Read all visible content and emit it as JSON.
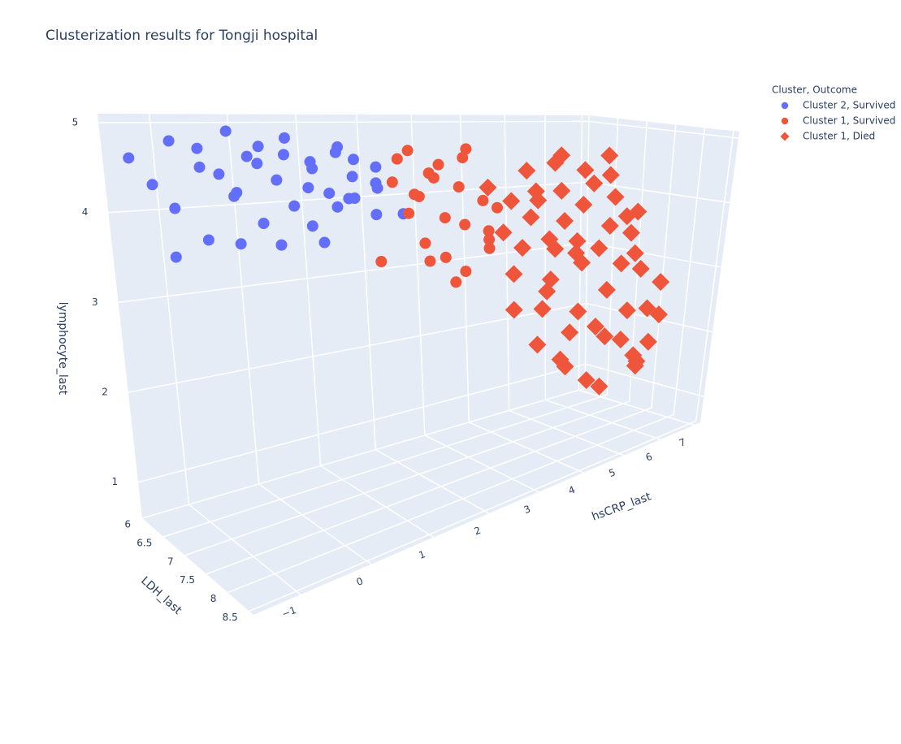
{
  "chart_data": {
    "type": "scatter3d",
    "title": "Clusterization results for Tongji hospital",
    "xaxis_title": "hsCRP_last",
    "yaxis_title": "LDH_last",
    "zaxis_title": "lymphocyte_last",
    "xlim": [
      -1.6,
      7.2
    ],
    "ylim": [
      6,
      8.6
    ],
    "zlim": [
      0.6,
      5.1
    ],
    "xticks": [
      {
        "value": -1,
        "label": "−1"
      },
      0,
      1,
      2,
      3,
      4,
      5,
      6,
      7
    ],
    "yticks": [
      6,
      6.5,
      7,
      7.5,
      8,
      8.5
    ],
    "zticks": [
      1,
      2,
      3,
      4,
      5
    ],
    "legend_title": "Cluster, Outcome",
    "series": [
      {
        "name": "Cluster 2, Survived",
        "color": "#636efa",
        "symbol": "circle",
        "x": [
          -1.3,
          -1.1,
          -0.9,
          -0.8,
          -0.6,
          -0.5,
          -0.4,
          -0.3,
          -0.2,
          -0.1,
          0,
          0.1,
          0.2,
          0.3,
          0.4,
          0.5,
          0.6,
          0.7,
          0.8,
          0.9,
          1.0,
          1.1,
          1.2,
          1.3,
          1.4,
          1.5,
          1.6,
          1.7,
          1.8,
          1.9,
          2.0,
          2.1,
          2.2,
          2.3,
          -1.0,
          -0.2,
          0.5,
          1.1,
          1.7,
          2.4
        ],
        "y": [
          6.0,
          6.1,
          6.2,
          6.0,
          6.3,
          6.1,
          6.0,
          6.2,
          6.4,
          6.1,
          6.0,
          6.2,
          6.3,
          6.1,
          6.0,
          6.2,
          6.4,
          6.1,
          6.0,
          6.3,
          6.2,
          6.1,
          6.0,
          6.2,
          6.3,
          6.1,
          6.0,
          6.2,
          6.1,
          6.0,
          6.3,
          6.2,
          6.1,
          6.0,
          6.3,
          6.4,
          6.2,
          6.3,
          6.1,
          6.4
        ],
        "z": [
          4.6,
          4.3,
          4.8,
          4.0,
          4.5,
          4.7,
          3.6,
          4.4,
          4.2,
          4.9,
          4.1,
          4.6,
          3.8,
          4.5,
          4.7,
          4.3,
          4.0,
          4.6,
          4.8,
          4.2,
          3.7,
          4.5,
          4.4,
          4.1,
          4.7,
          3.9,
          4.6,
          4.3,
          4.0,
          4.5,
          3.8,
          4.2,
          4.4,
          4.1,
          3.5,
          3.6,
          3.5,
          3.5,
          4.0,
          3.8
        ]
      },
      {
        "name": "Cluster 1, Survived",
        "color": "#ef553b",
        "symbol": "circle",
        "x": [
          2.3,
          2.4,
          2.5,
          2.6,
          2.7,
          2.8,
          2.9,
          3.0,
          3.1,
          3.2,
          3.3,
          3.4,
          3.5,
          3.6,
          3.7,
          3.8,
          3.9,
          4.0,
          4.1,
          4.2,
          2.6,
          3.0,
          3.4,
          3.8,
          2.9
        ],
        "y": [
          6.0,
          6.2,
          6.4,
          6.1,
          6.5,
          6.3,
          6.0,
          6.6,
          6.2,
          6.4,
          6.7,
          6.1,
          6.5,
          6.3,
          6.8,
          6.2,
          6.6,
          6.4,
          6.0,
          6.5,
          6.7,
          6.8,
          6.0,
          6.7,
          6.1
        ],
        "z": [
          3.1,
          4.2,
          3.8,
          4.5,
          3.4,
          4.0,
          4.6,
          3.2,
          4.3,
          3.7,
          3.0,
          4.4,
          3.6,
          4.1,
          3.3,
          4.5,
          3.5,
          3.9,
          4.6,
          3.8,
          3.2,
          2.9,
          4.2,
          3.4,
          4.0
        ]
      },
      {
        "name": "Cluster 1, Died",
        "color": "#ef553b",
        "symbol": "diamond",
        "x": [
          3.5,
          3.6,
          3.8,
          3.9,
          4.0,
          4.1,
          4.2,
          4.3,
          4.4,
          4.5,
          4.6,
          4.7,
          4.8,
          4.9,
          5.0,
          5.1,
          5.2,
          5.3,
          5.4,
          5.5,
          5.6,
          5.7,
          5.8,
          5.9,
          6.0,
          6.1,
          6.2,
          6.3,
          6.4,
          6.5,
          6.6,
          6.7,
          6.8,
          6.9,
          7.0,
          4.0,
          4.5,
          5.0,
          5.5,
          6.0,
          6.5,
          3.7,
          4.2,
          4.8,
          5.3,
          5.8,
          6.3,
          6.8,
          4.4,
          5.1,
          5.7,
          6.2,
          3.9,
          4.6,
          5.4
        ],
        "y": [
          7.5,
          7.9,
          7.2,
          8.1,
          6.8,
          7.6,
          7.0,
          8.3,
          7.4,
          6.9,
          7.8,
          7.1,
          8.0,
          6.7,
          7.5,
          7.3,
          8.2,
          6.9,
          7.7,
          7.0,
          6.6,
          7.9,
          7.2,
          6.8,
          7.5,
          8.0,
          7.1,
          6.7,
          7.6,
          7.3,
          6.9,
          7.8,
          7.0,
          6.6,
          6.5,
          6.5,
          8.4,
          6.4,
          8.3,
          6.3,
          7.4,
          8.4,
          8.0,
          8.2,
          8.4,
          8.3,
          8.1,
          7.2,
          6.6,
          6.5,
          6.4,
          6.6,
          7.7,
          7.3,
          8.4
        ],
        "z": [
          2.6,
          2.2,
          3.0,
          2.0,
          3.5,
          2.8,
          3.3,
          1.7,
          2.9,
          3.7,
          2.5,
          3.4,
          2.3,
          3.9,
          3.1,
          3.2,
          2.1,
          3.6,
          2.7,
          3.3,
          4.0,
          2.4,
          3.2,
          3.8,
          3.0,
          2.4,
          3.5,
          4.1,
          2.9,
          3.4,
          3.9,
          2.7,
          3.6,
          4.2,
          4.5,
          4.1,
          1.6,
          4.3,
          1.7,
          4.5,
          3.1,
          2.0,
          2.3,
          2.2,
          1.9,
          2.0,
          2.3,
          3.7,
          3.9,
          4.0,
          4.4,
          4.3,
          2.6,
          3.3,
          1.8
        ]
      }
    ]
  }
}
